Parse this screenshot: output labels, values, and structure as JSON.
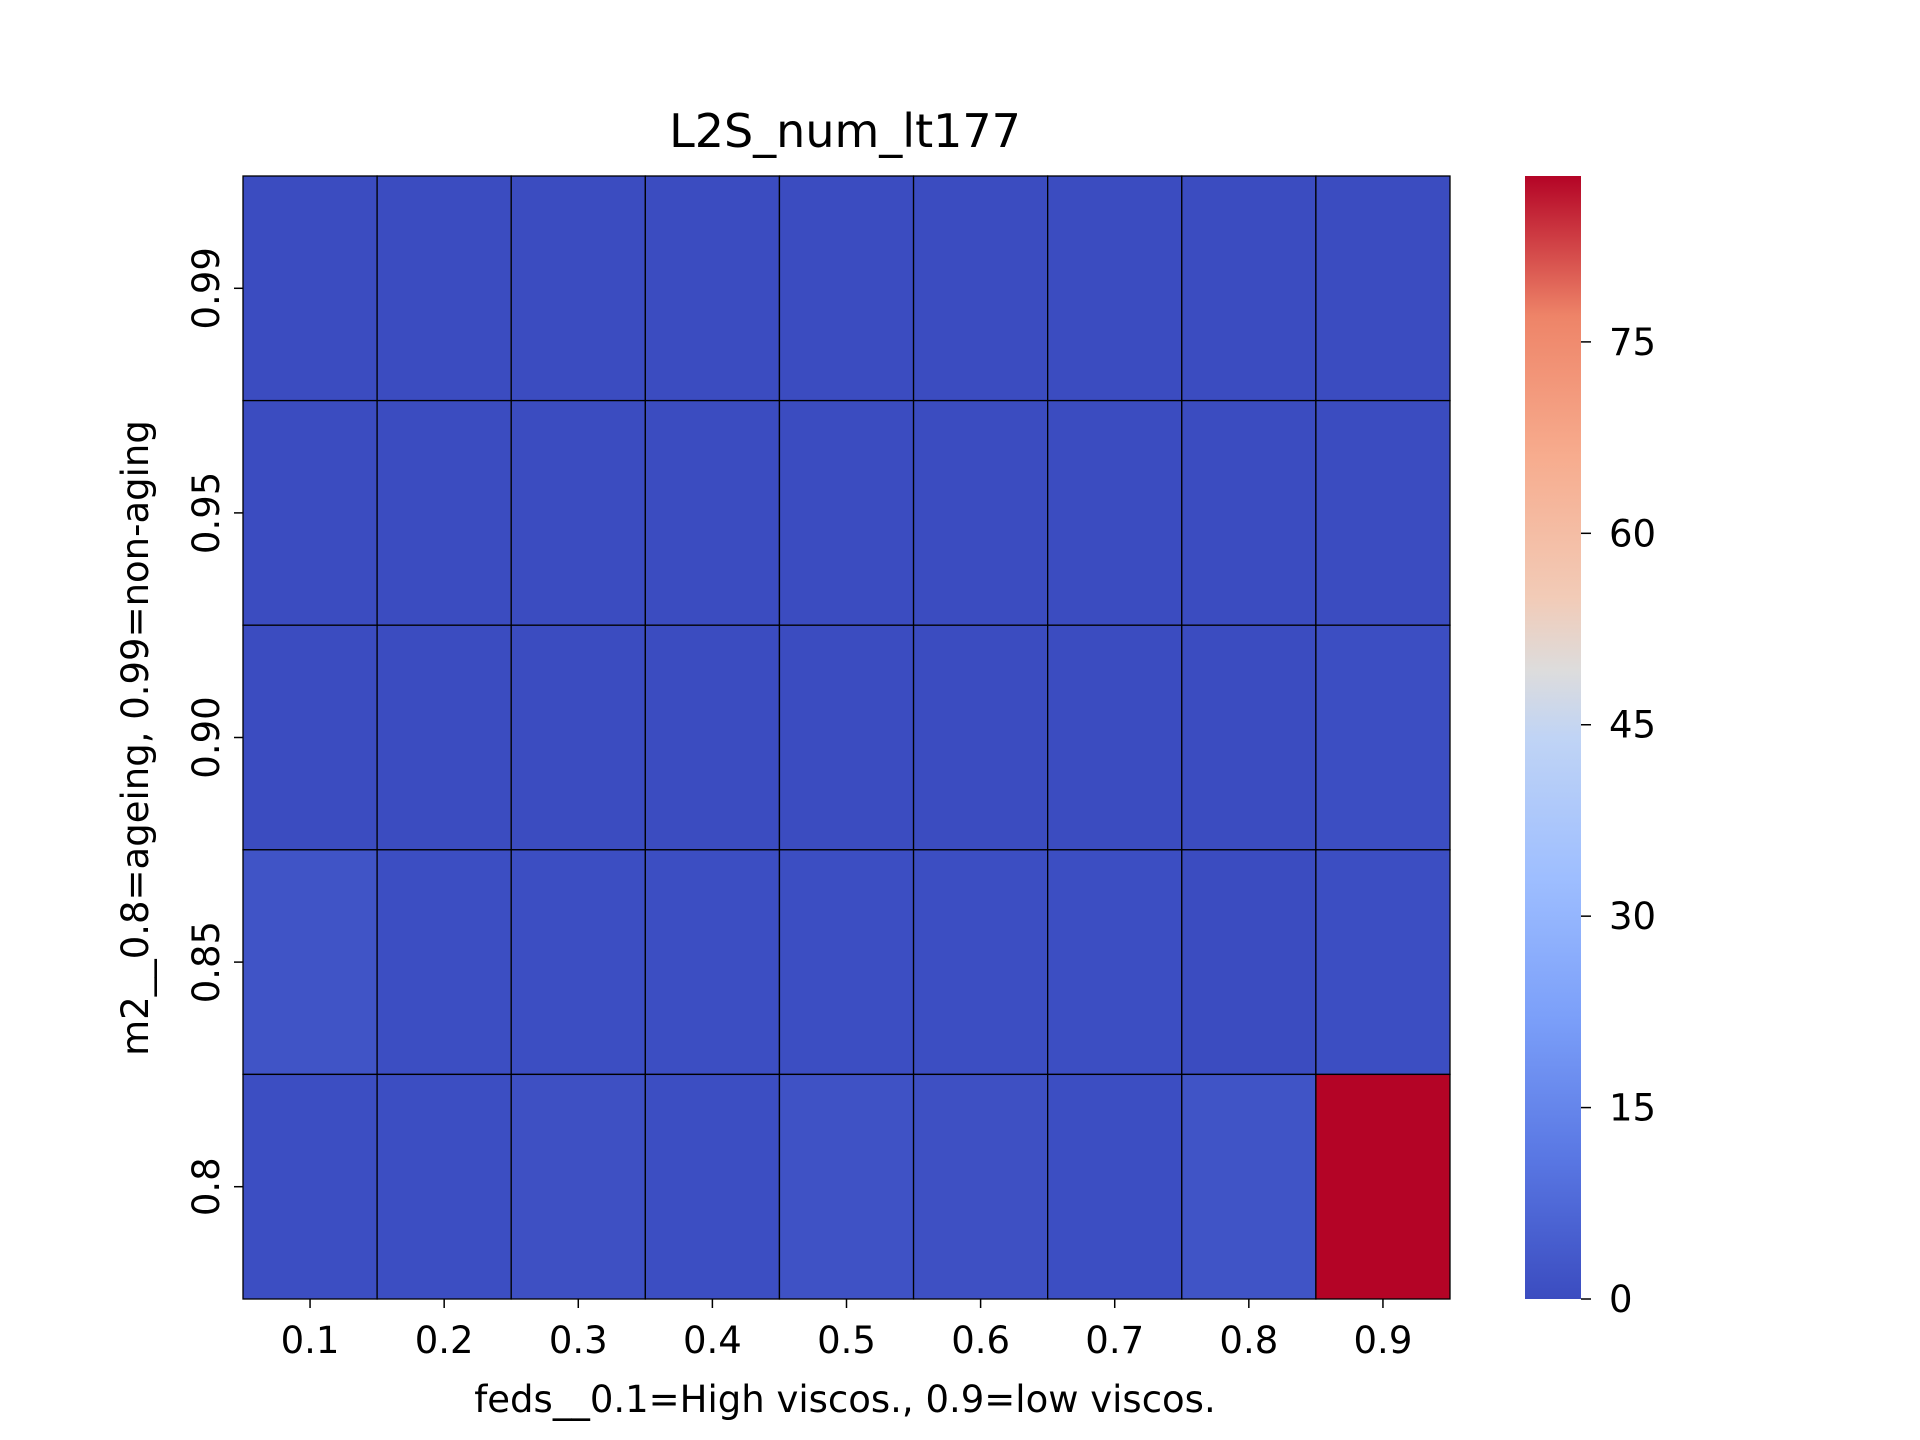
{
  "chart_data": {
    "type": "heatmap",
    "title": "L2S_num_lt177",
    "xlabel": "feds__0.1=High viscos., 0.9=low viscos.",
    "ylabel": "m2__0.8=ageing, 0.99=non-aging",
    "x": [
      "0.1",
      "0.2",
      "0.3",
      "0.4",
      "0.5",
      "0.6",
      "0.7",
      "0.8",
      "0.9"
    ],
    "y": [
      "0.99",
      "0.95",
      "0.90",
      "0.85",
      "0.8"
    ],
    "values": [
      [
        0,
        0,
        0,
        0,
        0,
        0,
        0,
        0,
        0
      ],
      [
        0,
        0,
        0,
        0,
        0,
        0,
        0,
        0,
        0
      ],
      [
        0,
        0,
        0,
        0,
        0,
        0,
        0,
        0,
        0.5
      ],
      [
        2,
        0.5,
        0.5,
        0.5,
        0.5,
        0.5,
        0.5,
        0,
        0.5
      ],
      [
        0.5,
        0.5,
        1,
        0.5,
        1.5,
        1,
        0.5,
        2,
        88
      ]
    ],
    "colorbar": {
      "colormap": "coolwarm",
      "min": 0,
      "max": 88,
      "ticks": [
        0,
        15,
        30,
        45,
        60,
        75
      ]
    },
    "grid": true,
    "legend": "colorbar-right"
  }
}
